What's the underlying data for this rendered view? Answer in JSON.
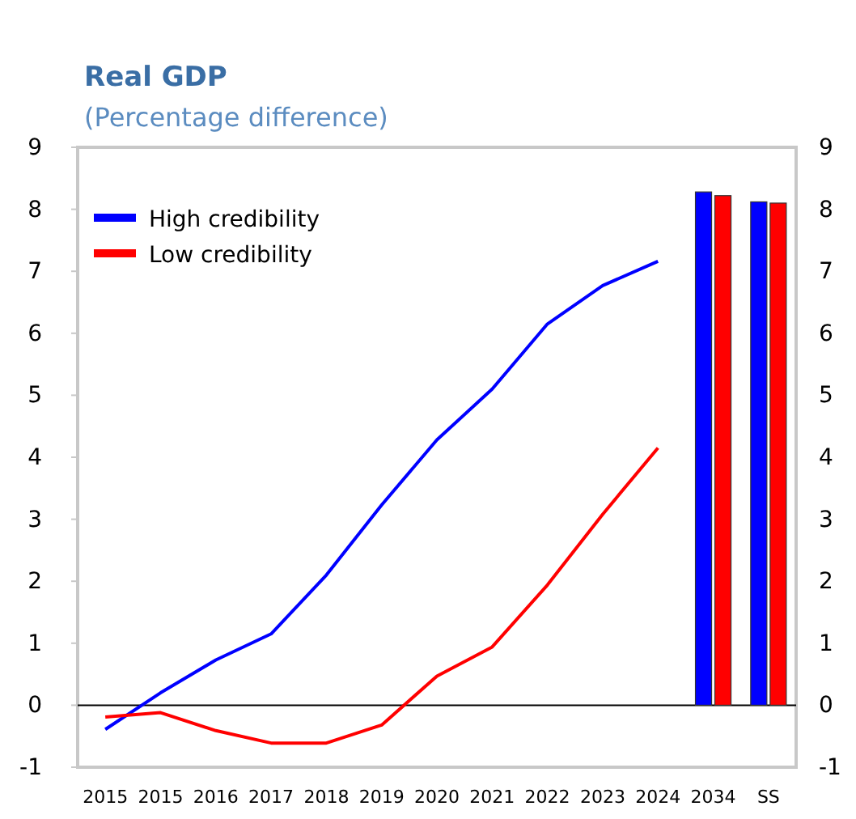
{
  "chart_data": {
    "type": "line",
    "title": "Real GDP",
    "subtitle": "(Percentage difference)",
    "categories": [
      "2015",
      "2015",
      "2016",
      "2017",
      "2018",
      "2019",
      "2020",
      "2021",
      "2022",
      "2023",
      "2024",
      "2034",
      "SS"
    ],
    "series": [
      {
        "name": "High credibility",
        "color": "#0000ff",
        "values": [
          -0.39,
          0.2,
          0.73,
          1.15,
          2.1,
          3.23,
          4.28,
          5.1,
          6.15,
          6.77,
          7.16,
          null,
          null
        ]
      },
      {
        "name": "Low credibility",
        "color": "#ff0000",
        "values": [
          -0.19,
          -0.12,
          -0.41,
          -0.61,
          -0.61,
          -0.32,
          0.47,
          0.94,
          1.94,
          3.08,
          4.15,
          null,
          null
        ]
      },
      {
        "type": "bar",
        "color": "#0000ff",
        "values": [
          null,
          null,
          null,
          null,
          null,
          null,
          null,
          null,
          null,
          null,
          null,
          8.28,
          8.12
        ]
      },
      {
        "type": "bar",
        "color": "#ff0000",
        "values": [
          null,
          null,
          null,
          null,
          null,
          null,
          null,
          null,
          null,
          null,
          null,
          8.22,
          8.1
        ]
      }
    ],
    "ylim": [
      -1,
      9
    ],
    "yticks": [
      -1,
      0,
      1,
      2,
      3,
      4,
      5,
      6,
      7,
      8,
      9
    ],
    "y2lim": [
      -1,
      9
    ],
    "y2ticks": [
      -1,
      0,
      1,
      2,
      3,
      4,
      5,
      6,
      7,
      8,
      9
    ],
    "legend": "top left"
  }
}
